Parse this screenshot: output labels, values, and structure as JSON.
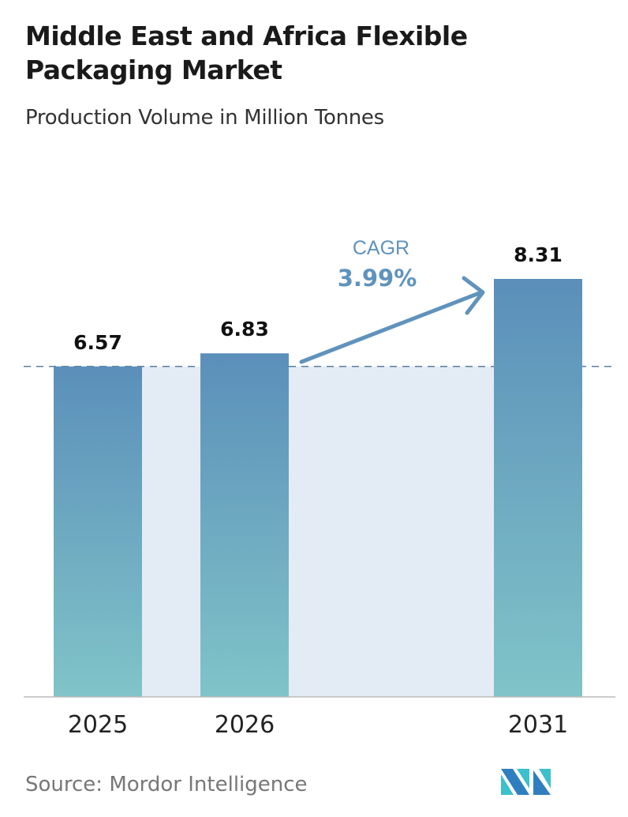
{
  "chart_data": {
    "type": "bar",
    "title": "Middle East and Africa Flexible Packaging Market",
    "subtitle": "Production Volume in Million Tonnes",
    "categories": [
      "2025",
      "2026",
      "2031"
    ],
    "values": [
      6.57,
      6.83,
      8.31
    ],
    "value_labels": [
      "6.57",
      "6.83",
      "8.31"
    ],
    "ylim": [
      0,
      8.31
    ],
    "grid": false,
    "reference_line": 6.57,
    "annotation": {
      "label": "CAGR",
      "value": "3.99%"
    },
    "colors": {
      "bar_top": "#5b8fba",
      "bar_bottom": "#80c4c8",
      "band": "#e3ecf4",
      "arrow": "#5f93bd",
      "dash": "#5b7f9f"
    }
  },
  "source": "Source:  Mordor Intelligence",
  "logo": {
    "text": "Mordor Intelligence",
    "colors": [
      "#2f7fc0",
      "#3cc0cc"
    ]
  }
}
